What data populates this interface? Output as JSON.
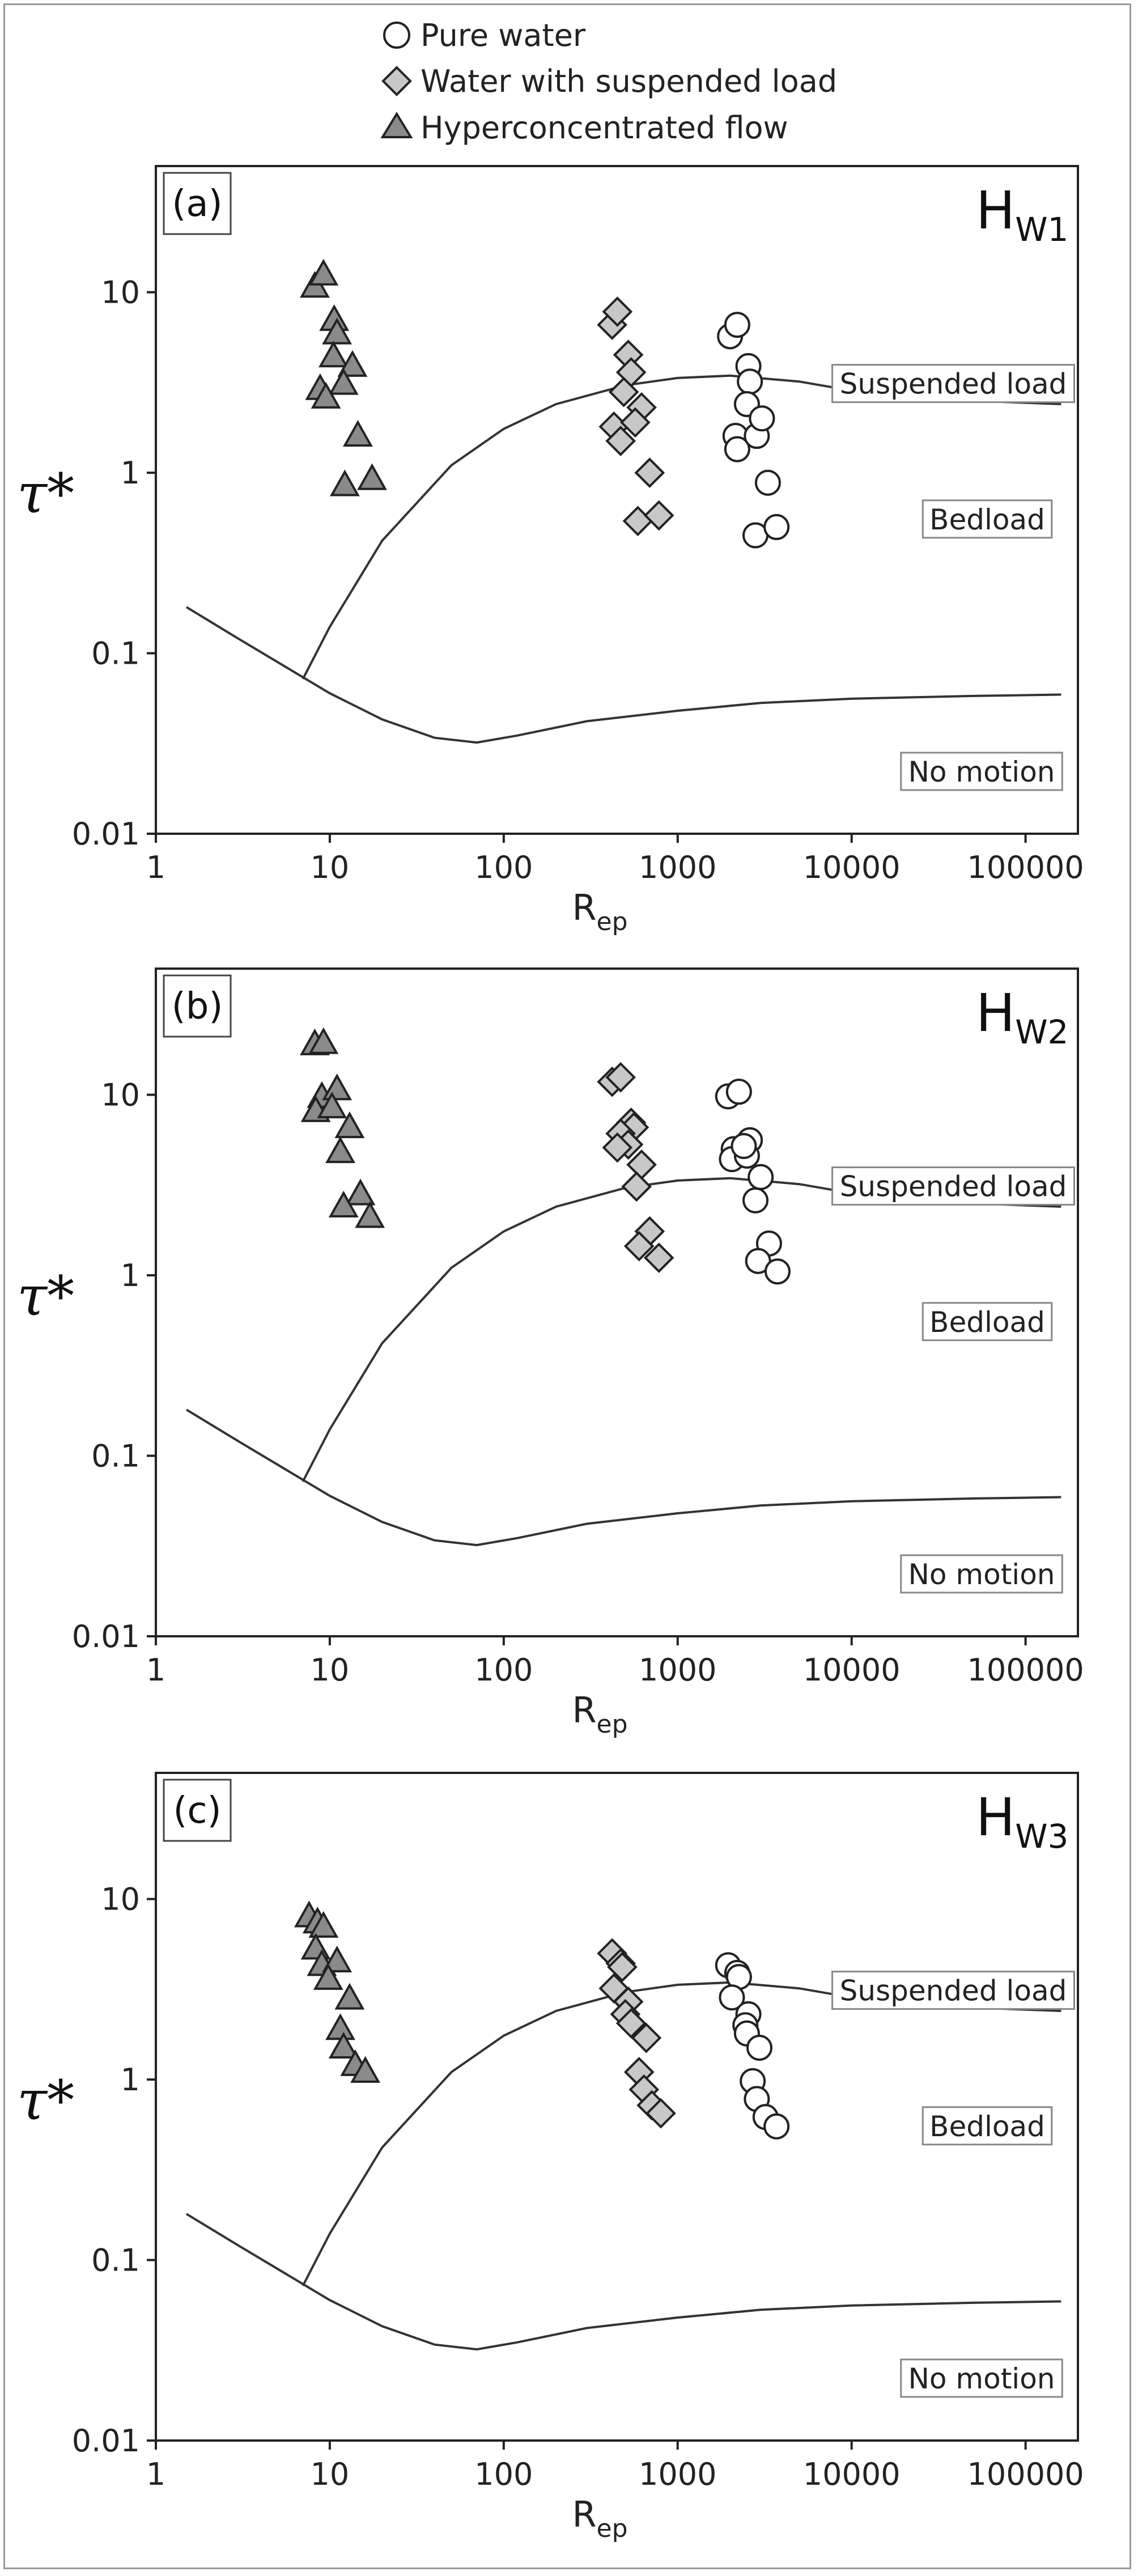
{
  "legend": [
    {
      "label": "Pure water",
      "marker": "circle",
      "fill": "#ffffff"
    },
    {
      "label": "Water with suspended load",
      "marker": "diamond",
      "fill": "#c8c8c8"
    },
    {
      "label": "Hyperconcentrated flow",
      "marker": "triangle",
      "fill": "#8a8a8a"
    }
  ],
  "colors": {
    "stroke": "#222222",
    "curve": "#333333",
    "frame": "#9a9a9a"
  },
  "chart_data": [
    {
      "type": "scatter",
      "panel_label": "(a)",
      "title_main": "H",
      "title_sub": "W1",
      "xlabel_main": "R",
      "xlabel_sub": "ep",
      "ylabel": "τ*",
      "x_scale": "log",
      "y_scale": "log",
      "xlim": [
        1,
        200000
      ],
      "ylim": [
        0.01,
        50
      ],
      "xticks": [
        "1",
        "10",
        "100",
        "1000",
        "10000",
        "100000"
      ],
      "yticks": [
        "0.01",
        "0.1",
        "1",
        "10"
      ],
      "regions": [
        "Suspended load",
        "Bedload",
        "No motion"
      ],
      "series": [
        {
          "name": "Pure water",
          "points": [
            [
              2000,
              5.7
            ],
            [
              2200,
              6.6
            ],
            [
              2550,
              3.9
            ],
            [
              2600,
              3.2
            ],
            [
              2500,
              2.4
            ],
            [
              2150,
              1.6
            ],
            [
              2200,
              1.35
            ],
            [
              2850,
              1.6
            ],
            [
              3050,
              2.0
            ],
            [
              3300,
              0.88
            ],
            [
              2800,
              0.45
            ],
            [
              3700,
              0.5
            ]
          ]
        },
        {
          "name": "Water with suspended load",
          "points": [
            [
              420,
              6.6
            ],
            [
              450,
              7.8
            ],
            [
              520,
              4.5
            ],
            [
              540,
              3.6
            ],
            [
              490,
              2.8
            ],
            [
              620,
              2.3
            ],
            [
              430,
              1.8
            ],
            [
              470,
              1.5
            ],
            [
              570,
              1.9
            ],
            [
              690,
              1.0
            ],
            [
              590,
              0.54
            ],
            [
              780,
              0.58
            ]
          ]
        },
        {
          "name": "Hyperconcentrated flow",
          "points": [
            [
              8.2,
              10.7
            ],
            [
              9.2,
              12.5
            ],
            [
              10.6,
              7.0
            ],
            [
              11.0,
              5.9
            ],
            [
              10.5,
              4.4
            ],
            [
              13.5,
              3.9
            ],
            [
              12.0,
              3.1
            ],
            [
              8.8,
              2.9
            ],
            [
              9.5,
              2.6
            ],
            [
              14.5,
              1.6
            ],
            [
              12.2,
              0.85
            ],
            [
              17.5,
              0.92
            ]
          ]
        }
      ],
      "curves": [
        {
          "name": "suspension threshold",
          "points": [
            [
              7,
              0.072
            ],
            [
              10,
              0.14
            ],
            [
              20,
              0.42
            ],
            [
              50,
              1.1
            ],
            [
              100,
              1.75
            ],
            [
              200,
              2.4
            ],
            [
              500,
              3.05
            ],
            [
              1000,
              3.35
            ],
            [
              2000,
              3.45
            ],
            [
              5000,
              3.2
            ],
            [
              10000,
              2.85
            ],
            [
              30000,
              2.55
            ],
            [
              160000,
              2.4
            ]
          ]
        },
        {
          "name": "motion threshold",
          "points": [
            [
              1.5,
              0.18
            ],
            [
              3,
              0.12
            ],
            [
              10,
              0.06
            ],
            [
              20,
              0.043
            ],
            [
              40,
              0.034
            ],
            [
              70,
              0.032
            ],
            [
              120,
              0.035
            ],
            [
              300,
              0.042
            ],
            [
              1000,
              0.048
            ],
            [
              3000,
              0.053
            ],
            [
              10000,
              0.056
            ],
            [
              50000,
              0.058
            ],
            [
              160000,
              0.059
            ]
          ]
        }
      ]
    },
    {
      "type": "scatter",
      "panel_label": "(b)",
      "title_main": "H",
      "title_sub": "W2",
      "xlabel_main": "R",
      "xlabel_sub": "ep",
      "ylabel": "τ*",
      "x_scale": "log",
      "y_scale": "log",
      "xlim": [
        1,
        200000
      ],
      "ylim": [
        0.01,
        50
      ],
      "xticks": [
        "1",
        "10",
        "100",
        "1000",
        "10000",
        "100000"
      ],
      "yticks": [
        "0.01",
        "0.1",
        "1",
        "10"
      ],
      "regions": [
        "Suspended load",
        "Bedload",
        "No motion"
      ],
      "series": [
        {
          "name": "Pure water",
          "points": [
            [
              1950,
              9.8
            ],
            [
              2250,
              10.4
            ],
            [
              2100,
              5.0
            ],
            [
              2050,
              4.4
            ],
            [
              2600,
              5.6
            ],
            [
              2500,
              4.6
            ],
            [
              2400,
              5.2
            ],
            [
              3000,
              3.5
            ],
            [
              2800,
              2.6
            ],
            [
              3350,
              1.5
            ],
            [
              2900,
              1.2
            ],
            [
              3750,
              1.05
            ]
          ]
        },
        {
          "name": "Water with suspended load",
          "points": [
            [
              420,
              11.8
            ],
            [
              470,
              12.5
            ],
            [
              540,
              7.0
            ],
            [
              560,
              6.6
            ],
            [
              470,
              6.1
            ],
            [
              520,
              5.3
            ],
            [
              450,
              5.1
            ],
            [
              620,
              4.1
            ],
            [
              580,
              3.1
            ],
            [
              690,
              1.75
            ],
            [
              600,
              1.45
            ],
            [
              780,
              1.25
            ]
          ]
        },
        {
          "name": "Hyperconcentrated flow",
          "points": [
            [
              8.2,
              19.0
            ],
            [
              9.2,
              19.3
            ],
            [
              9.0,
              9.7
            ],
            [
              11.0,
              10.7
            ],
            [
              8.3,
              8.1
            ],
            [
              10.3,
              8.5
            ],
            [
              13.0,
              6.6
            ],
            [
              11.5,
              4.8
            ],
            [
              15.0,
              2.8
            ],
            [
              12.0,
              2.4
            ],
            [
              17.0,
              2.1
            ]
          ]
        }
      ],
      "curves": [
        {
          "name": "suspension threshold",
          "points": [
            [
              7,
              0.072
            ],
            [
              10,
              0.14
            ],
            [
              20,
              0.42
            ],
            [
              50,
              1.1
            ],
            [
              100,
              1.75
            ],
            [
              200,
              2.4
            ],
            [
              500,
              3.05
            ],
            [
              1000,
              3.35
            ],
            [
              2000,
              3.45
            ],
            [
              5000,
              3.2
            ],
            [
              10000,
              2.85
            ],
            [
              30000,
              2.55
            ],
            [
              160000,
              2.4
            ]
          ]
        },
        {
          "name": "motion threshold",
          "points": [
            [
              1.5,
              0.18
            ],
            [
              3,
              0.12
            ],
            [
              10,
              0.06
            ],
            [
              20,
              0.043
            ],
            [
              40,
              0.034
            ],
            [
              70,
              0.032
            ],
            [
              120,
              0.035
            ],
            [
              300,
              0.042
            ],
            [
              1000,
              0.048
            ],
            [
              3000,
              0.053
            ],
            [
              10000,
              0.056
            ],
            [
              50000,
              0.058
            ],
            [
              160000,
              0.059
            ]
          ]
        }
      ]
    },
    {
      "type": "scatter",
      "panel_label": "(c)",
      "title_main": "H",
      "title_sub": "W3",
      "xlabel_main": "R",
      "xlabel_sub": "ep",
      "ylabel": "τ*",
      "x_scale": "log",
      "y_scale": "log",
      "xlim": [
        1,
        200000
      ],
      "ylim": [
        0.01,
        50
      ],
      "xticks": [
        "1",
        "10",
        "100",
        "1000",
        "10000",
        "100000"
      ],
      "yticks": [
        "0.01",
        "0.1",
        "1",
        "10"
      ],
      "regions": [
        "Suspended load",
        "Bedload",
        "No motion"
      ],
      "series": [
        {
          "name": "Pure water",
          "points": [
            [
              1950,
              4.3
            ],
            [
              2200,
              3.9
            ],
            [
              2250,
              3.7
            ],
            [
              2050,
              2.85
            ],
            [
              2550,
              2.3
            ],
            [
              2450,
              2.0
            ],
            [
              2500,
              1.8
            ],
            [
              2950,
              1.5
            ],
            [
              2700,
              0.98
            ],
            [
              2850,
              0.78
            ],
            [
              3200,
              0.62
            ],
            [
              3700,
              0.55
            ]
          ]
        },
        {
          "name": "Water with suspended load",
          "points": [
            [
              420,
              5.0
            ],
            [
              470,
              4.4
            ],
            [
              480,
              4.2
            ],
            [
              430,
              3.2
            ],
            [
              520,
              2.7
            ],
            [
              500,
              2.3
            ],
            [
              540,
              2.05
            ],
            [
              660,
              1.7
            ],
            [
              600,
              1.1
            ],
            [
              640,
              0.88
            ],
            [
              710,
              0.72
            ],
            [
              800,
              0.65
            ]
          ]
        },
        {
          "name": "Hyperconcentrated flow",
          "points": [
            [
              7.6,
              8.0
            ],
            [
              8.5,
              7.4
            ],
            [
              9.2,
              7.0
            ],
            [
              8.3,
              5.3
            ],
            [
              9.0,
              4.3
            ],
            [
              11.0,
              4.5
            ],
            [
              9.8,
              3.6
            ],
            [
              13.0,
              2.8
            ],
            [
              11.5,
              1.9
            ],
            [
              12.0,
              1.5
            ],
            [
              14.0,
              1.2
            ],
            [
              16.0,
              1.1
            ]
          ]
        }
      ],
      "curves": [
        {
          "name": "suspension threshold",
          "points": [
            [
              7,
              0.072
            ],
            [
              10,
              0.14
            ],
            [
              20,
              0.42
            ],
            [
              50,
              1.1
            ],
            [
              100,
              1.75
            ],
            [
              200,
              2.4
            ],
            [
              500,
              3.05
            ],
            [
              1000,
              3.35
            ],
            [
              2000,
              3.45
            ],
            [
              5000,
              3.2
            ],
            [
              10000,
              2.85
            ],
            [
              30000,
              2.55
            ],
            [
              160000,
              2.4
            ]
          ]
        },
        {
          "name": "motion threshold",
          "points": [
            [
              1.5,
              0.18
            ],
            [
              3,
              0.12
            ],
            [
              10,
              0.06
            ],
            [
              20,
              0.043
            ],
            [
              40,
              0.034
            ],
            [
              70,
              0.032
            ],
            [
              120,
              0.035
            ],
            [
              300,
              0.042
            ],
            [
              1000,
              0.048
            ],
            [
              3000,
              0.053
            ],
            [
              10000,
              0.056
            ],
            [
              50000,
              0.058
            ],
            [
              160000,
              0.059
            ]
          ]
        }
      ]
    }
  ]
}
